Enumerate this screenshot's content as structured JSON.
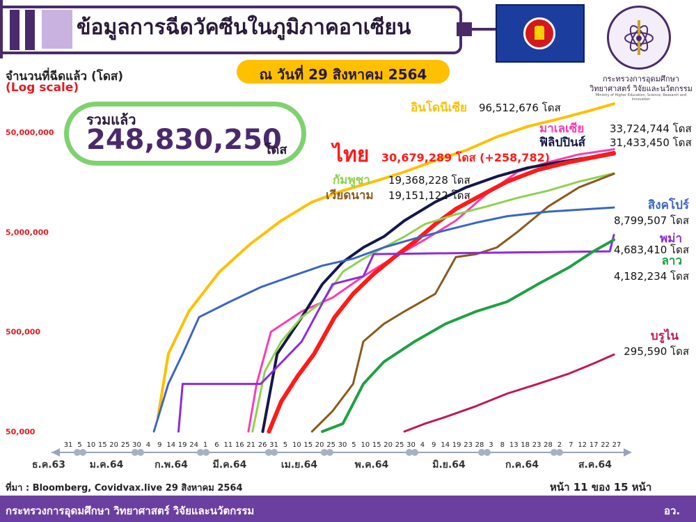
{
  "header": {
    "title": "ข้อมูลการฉีดวัคซีนในภูมิภาคอาเซียน",
    "date_badge": "ณ วันที่ 29 สิงหาคม 2564",
    "ministry_line1": "กระทรวงการอุดมศึกษา",
    "ministry_line2": "วิทยาศาสตร์ วิจัยและนวัตกรรม",
    "ministry_en": "Ministry of Higher Education, Science, Research and Innovation"
  },
  "total": {
    "label": "รวมแล้ว",
    "value": "248,830,250",
    "unit": "โดส"
  },
  "footer": {
    "source": "ที่มา : Bloomberg, Covidvax.live 29 สิงหาคม 2564",
    "page": "หน้า 11 ของ 15 หน้า",
    "ministry": "กระทรวงการอุดมศึกษา วิทยาศาสตร์ วิจัยและนวัตกรรม",
    "abbr": "อว."
  },
  "colors": {
    "purple": "#6b3fa0",
    "dark_purple": "#4a2a6b",
    "gold": "#ffc000",
    "green_ring": "#7ed26e",
    "axis_red": "#e31b23"
  },
  "chart_data": {
    "type": "line",
    "ylabel": "จำนวนที่ฉีดแล้ว (โดส)",
    "yscale_note": "(Log scale)",
    "yscale": "log",
    "ylim": [
      50000,
      120000000
    ],
    "y_ticks": [
      {
        "value": 50000,
        "label": "50,000"
      },
      {
        "value": 500000,
        "label": "500,000"
      },
      {
        "value": 5000000,
        "label": "5,000,000"
      },
      {
        "value": 50000000,
        "label": "50,000,000"
      }
    ],
    "x_range_days": [
      0,
      244
    ],
    "x_day_ticks": [
      "31",
      "5",
      "10",
      "15",
      "20",
      "25",
      "30",
      "4",
      "9",
      "14",
      "19",
      "24",
      "1",
      "6",
      "11",
      "16",
      "21",
      "26",
      "31",
      "5",
      "10",
      "15",
      "20",
      "25",
      "30",
      "5",
      "10",
      "15",
      "20",
      "25",
      "30",
      "4",
      "9",
      "14",
      "19",
      "23",
      "28",
      "3",
      "8",
      "13",
      "18",
      "23",
      "28",
      "2",
      "7",
      "12",
      "17",
      "22",
      "27"
    ],
    "x_months": [
      "ธ.ค.63",
      "ม.ค.64",
      "ก.พ.64",
      "มี.ค.64",
      "เม.ย.64",
      "พ.ค.64",
      "มิ.ย.64",
      "ก.ค.64",
      "ส.ค.64"
    ],
    "series": [
      {
        "name": "อินโดนีเซีย",
        "value_label": "96,512,676 โดส",
        "color": "#ffc000",
        "width": 4,
        "points": [
          [
            20,
            70000
          ],
          [
            25,
            300000
          ],
          [
            35,
            800000
          ],
          [
            50,
            2000000
          ],
          [
            65,
            3800000
          ],
          [
            80,
            6500000
          ],
          [
            95,
            10000000
          ],
          [
            110,
            13000000
          ],
          [
            125,
            16000000
          ],
          [
            140,
            20000000
          ],
          [
            155,
            26000000
          ],
          [
            170,
            33000000
          ],
          [
            185,
            45000000
          ],
          [
            200,
            57000000
          ],
          [
            215,
            68000000
          ],
          [
            230,
            82000000
          ],
          [
            242,
            96512676
          ]
        ]
      },
      {
        "name": "มาเลเซีย",
        "value_label": "33,724,744 โดส",
        "color": "#ff3bb0",
        "width": 3,
        "points": [
          [
            64,
            50000
          ],
          [
            68,
            150000
          ],
          [
            75,
            500000
          ],
          [
            90,
            800000
          ],
          [
            105,
            1100000
          ],
          [
            120,
            1800000
          ],
          [
            135,
            2800000
          ],
          [
            150,
            4200000
          ],
          [
            165,
            6500000
          ],
          [
            180,
            12000000
          ],
          [
            195,
            20000000
          ],
          [
            210,
            25000000
          ],
          [
            225,
            30000000
          ],
          [
            242,
            33724744
          ]
        ]
      },
      {
        "name": "ฟิลิปปินส์",
        "value_label": "31,433,450 โดส",
        "color": "#14184a",
        "width": 4,
        "points": [
          [
            71,
            50000
          ],
          [
            78,
            300000
          ],
          [
            90,
            700000
          ],
          [
            100,
            1500000
          ],
          [
            110,
            2500000
          ],
          [
            120,
            3500000
          ],
          [
            130,
            4500000
          ],
          [
            140,
            6500000
          ],
          [
            155,
            10000000
          ],
          [
            170,
            14000000
          ],
          [
            185,
            18000000
          ],
          [
            200,
            22000000
          ],
          [
            215,
            25000000
          ],
          [
            230,
            28000000
          ],
          [
            242,
            31433450
          ]
        ]
      },
      {
        "name": "ไทย",
        "value_label": "30,679,289 โดส (+258,782)",
        "color": "#ff1a1a",
        "width": 6,
        "points": [
          [
            74,
            50000
          ],
          [
            80,
            100000
          ],
          [
            88,
            180000
          ],
          [
            96,
            300000
          ],
          [
            106,
            700000
          ],
          [
            115,
            1200000
          ],
          [
            125,
            1900000
          ],
          [
            135,
            2800000
          ],
          [
            145,
            4000000
          ],
          [
            155,
            6000000
          ],
          [
            165,
            8500000
          ],
          [
            175,
            11000000
          ],
          [
            190,
            16000000
          ],
          [
            205,
            21000000
          ],
          [
            220,
            25000000
          ],
          [
            232,
            28000000
          ],
          [
            242,
            30679289
          ]
        ]
      },
      {
        "name": "กัมพูชา",
        "value_label": "19,368,228 โดส",
        "color": "#8fd14f",
        "width": 3,
        "points": [
          [
            66,
            50000
          ],
          [
            72,
            200000
          ],
          [
            80,
            400000
          ],
          [
            90,
            700000
          ],
          [
            100,
            1000000
          ],
          [
            110,
            2000000
          ],
          [
            120,
            2700000
          ],
          [
            130,
            3500000
          ],
          [
            140,
            4500000
          ],
          [
            150,
            6000000
          ],
          [
            165,
            7500000
          ],
          [
            180,
            9000000
          ],
          [
            195,
            11000000
          ],
          [
            210,
            13000000
          ],
          [
            225,
            16000000
          ],
          [
            242,
            19368228
          ]
        ]
      },
      {
        "name": "เวียดนาม",
        "value_label": "19,151,122 โดส",
        "color": "#8b5a1e",
        "width": 3,
        "points": [
          [
            95,
            50000
          ],
          [
            105,
            80000
          ],
          [
            115,
            150000
          ],
          [
            120,
            400000
          ],
          [
            130,
            600000
          ],
          [
            140,
            800000
          ],
          [
            155,
            1200000
          ],
          [
            165,
            2800000
          ],
          [
            175,
            3000000
          ],
          [
            185,
            3500000
          ],
          [
            195,
            5000000
          ],
          [
            210,
            9000000
          ],
          [
            225,
            14000000
          ],
          [
            242,
            19151122
          ]
        ]
      },
      {
        "name": "สิงคโปร์",
        "value_label": "8,799,507 โดส",
        "color": "#3a66c4",
        "width": 3,
        "points": [
          [
            18,
            50000
          ],
          [
            25,
            150000
          ],
          [
            32,
            300000
          ],
          [
            40,
            700000
          ],
          [
            55,
            1000000
          ],
          [
            70,
            1400000
          ],
          [
            85,
            1800000
          ],
          [
            100,
            2300000
          ],
          [
            115,
            2700000
          ],
          [
            130,
            3500000
          ],
          [
            145,
            4300000
          ],
          [
            160,
            5200000
          ],
          [
            175,
            6200000
          ],
          [
            190,
            7200000
          ],
          [
            210,
            8000000
          ],
          [
            242,
            8799507
          ]
        ]
      },
      {
        "name": "พม่า",
        "value_label": "4,683,410 โดส",
        "color": "#8a2be2",
        "width": 3,
        "points": [
          [
            30,
            50000
          ],
          [
            32,
            150000
          ],
          [
            70,
            150000
          ],
          [
            90,
            400000
          ],
          [
            105,
            1500000
          ],
          [
            120,
            1800000
          ],
          [
            125,
            3000000
          ],
          [
            240,
            3200000
          ],
          [
            242,
            4683410
          ]
        ]
      },
      {
        "name": "ลาว",
        "value_label": "4,182,234 โดส",
        "color": "#1fa045",
        "width": 4,
        "points": [
          [
            100,
            50000
          ],
          [
            110,
            60000
          ],
          [
            120,
            150000
          ],
          [
            130,
            250000
          ],
          [
            145,
            400000
          ],
          [
            160,
            600000
          ],
          [
            175,
            800000
          ],
          [
            190,
            1000000
          ],
          [
            205,
            1500000
          ],
          [
            220,
            2200000
          ],
          [
            232,
            3200000
          ],
          [
            242,
            4182234
          ]
        ]
      },
      {
        "name": "บรูไน",
        "value_label": "295,590 โดส",
        "color": "#c0185a",
        "width": 3,
        "points": [
          [
            140,
            50000
          ],
          [
            150,
            60000
          ],
          [
            160,
            70000
          ],
          [
            175,
            90000
          ],
          [
            190,
            120000
          ],
          [
            205,
            150000
          ],
          [
            220,
            190000
          ],
          [
            232,
            240000
          ],
          [
            242,
            295590
          ]
        ]
      }
    ]
  }
}
